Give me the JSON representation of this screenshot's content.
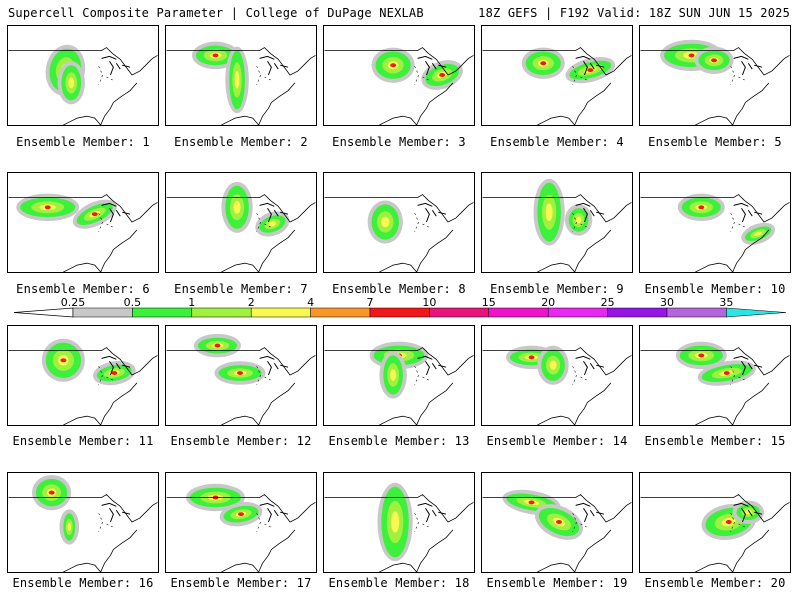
{
  "header": {
    "left": "Supercell Composite Parameter | College of DuPage NEXLAB",
    "right": "18Z GEFS | F192 Valid: 18Z SUN JUN 15 2025"
  },
  "colors": {
    "background": "#ffffff",
    "map_lines": "#000000",
    "hatch": "#000000"
  },
  "colorbar": {
    "ticks": [
      "0.25",
      "0.5",
      "1",
      "2",
      "4",
      "7",
      "10",
      "15",
      "20",
      "25",
      "30",
      "35"
    ],
    "colors": [
      "#c8c8c8",
      "#3cf03c",
      "#a0f040",
      "#f8f850",
      "#f89628",
      "#f01818",
      "#e8147a",
      "#f014c8",
      "#e828f0",
      "#9614e6",
      "#b464dc",
      "#28e6e6"
    ]
  },
  "members": [
    {
      "label": "Ensemble Member: 1"
    },
    {
      "label": "Ensemble Member: 2"
    },
    {
      "label": "Ensemble Member: 3"
    },
    {
      "label": "Ensemble Member: 4"
    },
    {
      "label": "Ensemble Member: 5"
    },
    {
      "label": "Ensemble Member: 6"
    },
    {
      "label": "Ensemble Member: 7"
    },
    {
      "label": "Ensemble Member: 8"
    },
    {
      "label": "Ensemble Member: 9"
    },
    {
      "label": "Ensemble Member: 10"
    },
    {
      "label": "Ensemble Member: 11"
    },
    {
      "label": "Ensemble Member: 12"
    },
    {
      "label": "Ensemble Member: 13"
    },
    {
      "label": "Ensemble Member: 14"
    },
    {
      "label": "Ensemble Member: 15"
    },
    {
      "label": "Ensemble Member: 16"
    },
    {
      "label": "Ensemble Member: 17"
    },
    {
      "label": "Ensemble Member: 18"
    },
    {
      "label": "Ensemble Member: 19"
    },
    {
      "label": "Ensemble Member: 20"
    }
  ]
}
